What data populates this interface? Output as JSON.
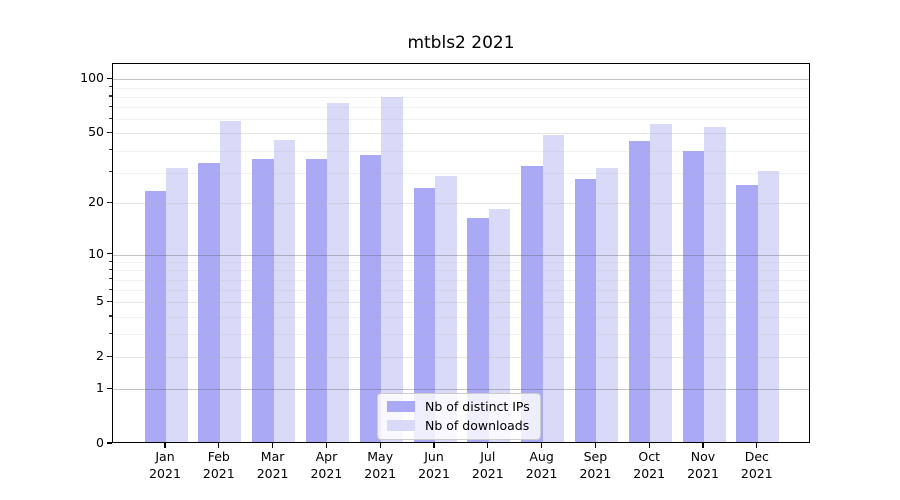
{
  "title": "mtbls2 2021",
  "chart_data": {
    "type": "bar",
    "title": "mtbls2 2021",
    "categories": [
      "Jan 2021",
      "Feb 2021",
      "Mar 2021",
      "Apr 2021",
      "May 2021",
      "Jun 2021",
      "Jul 2021",
      "Aug 2021",
      "Sep 2021",
      "Oct 2021",
      "Nov 2021",
      "Dec 2021"
    ],
    "series": [
      {
        "name": "Nb of distinct IPs",
        "color": "#a9a9f5",
        "values": [
          23,
          33,
          35,
          35,
          37,
          24,
          16,
          32,
          27,
          44,
          39,
          25
        ]
      },
      {
        "name": "Nb of downloads",
        "color": "#d9d9f8",
        "values": [
          31,
          57,
          45,
          72,
          78,
          28,
          18,
          48,
          31,
          55,
          53,
          30
        ]
      }
    ],
    "xlabel": "",
    "ylabel": "",
    "yscale": "log1p (0 at baseline, logarithmic above)",
    "yticks": [
      0,
      1,
      2,
      5,
      10,
      20,
      50,
      100
    ],
    "major_gridlines": [
      1,
      10,
      100
    ],
    "minor_gridlines": [
      2,
      3,
      4,
      5,
      6,
      7,
      8,
      9,
      20,
      30,
      40,
      50,
      60,
      70,
      80,
      90
    ],
    "ylim": [
      0,
      120
    ],
    "grid": "on (drawn above bars)",
    "legend_position": "lower center"
  },
  "colors": {
    "background": "#ffffff",
    "axis_spine": "#000000",
    "text": "#000000",
    "grid_major": "#c9c9c9",
    "grid_minor": "#ebebeb",
    "legend_border": "#cccccc"
  }
}
